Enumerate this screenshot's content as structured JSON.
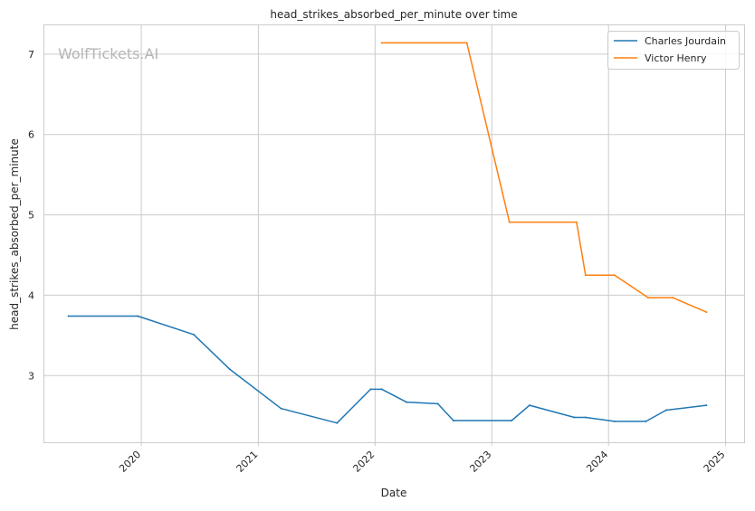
{
  "watermark": "WolfTickets.AI",
  "chart_data": {
    "type": "line",
    "title": "head_strikes_absorbed_per_minute over time",
    "xlabel": "Date",
    "ylabel": "head_strikes_absorbed_per_minute",
    "x_ticks": [
      "2020",
      "2021",
      "2022",
      "2023",
      "2024",
      "2025"
    ],
    "y_ticks": [
      "3",
      "4",
      "5",
      "6",
      "7"
    ],
    "xlim": [
      "2019-03-01",
      "2025-02-28"
    ],
    "ylim": [
      2.17,
      7.37
    ],
    "grid": true,
    "legend_position": "top-right",
    "series": [
      {
        "name": "Charles Jourdain",
        "color": "#1f77b4",
        "points": [
          [
            "2019-05-18",
            3.74
          ],
          [
            "2019-12-21",
            3.74
          ],
          [
            "2020-06-13",
            3.51
          ],
          [
            "2020-10-03",
            3.08
          ],
          [
            "2021-03-13",
            2.59
          ],
          [
            "2021-09-04",
            2.41
          ],
          [
            "2021-12-18",
            2.83
          ],
          [
            "2022-01-22",
            2.83
          ],
          [
            "2022-04-09",
            2.67
          ],
          [
            "2022-07-16",
            2.65
          ],
          [
            "2022-09-03",
            2.44
          ],
          [
            "2023-03-04",
            2.44
          ],
          [
            "2023-04-29",
            2.63
          ],
          [
            "2023-09-16",
            2.48
          ],
          [
            "2023-10-21",
            2.48
          ],
          [
            "2024-01-20",
            2.43
          ],
          [
            "2024-04-27",
            2.43
          ],
          [
            "2024-06-29",
            2.57
          ],
          [
            "2024-11-02",
            2.63
          ]
        ]
      },
      {
        "name": "Victor Henry",
        "color": "#ff7f0e",
        "points": [
          [
            "2022-01-22",
            7.14
          ],
          [
            "2022-10-15",
            7.14
          ],
          [
            "2023-02-25",
            4.91
          ],
          [
            "2023-09-23",
            4.91
          ],
          [
            "2023-10-21",
            4.25
          ],
          [
            "2024-01-20",
            4.25
          ],
          [
            "2024-05-04",
            3.97
          ],
          [
            "2024-07-20",
            3.97
          ],
          [
            "2024-11-02",
            3.79
          ]
        ]
      }
    ]
  }
}
